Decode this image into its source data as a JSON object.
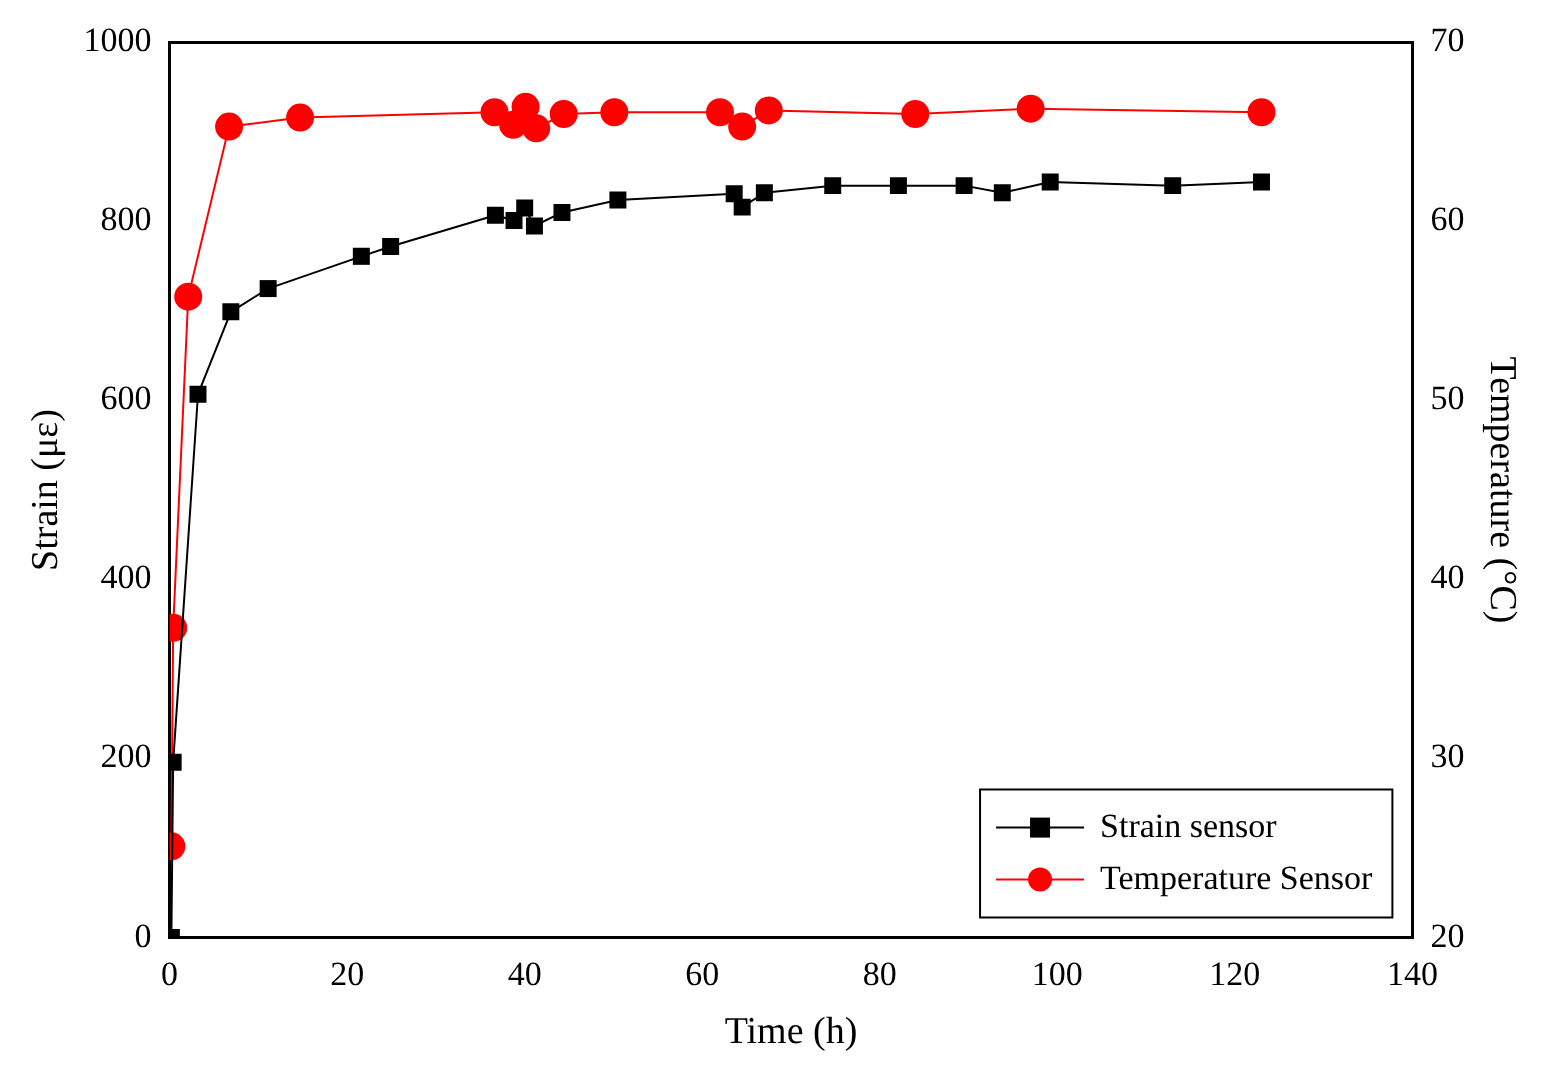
{
  "chart_data": {
    "type": "line",
    "xlabel": "Time (h)",
    "ylabel": "Strain (με)",
    "y2label": "Temperature (°C)",
    "xlim": [
      0,
      140
    ],
    "xticks": [
      0,
      20,
      40,
      60,
      80,
      100,
      120,
      140
    ],
    "ylim": [
      0,
      1000
    ],
    "yticks": [
      0,
      200,
      400,
      600,
      800,
      1000
    ],
    "y2lim": [
      20,
      70
    ],
    "y2ticks": [
      20,
      30,
      40,
      50,
      60,
      70
    ],
    "grid": false,
    "legend": "bottom right",
    "line_style": "solid",
    "series": [
      {
        "name": "Strain sensor",
        "color": "#000000",
        "marker": "square",
        "x": [
          0.2,
          0.4,
          3.2,
          6.9,
          11.1,
          21.6,
          24.9,
          36.7,
          38.8,
          40,
          41.1,
          44.2,
          50.5,
          63.6,
          64.5,
          67,
          74.7,
          82.1,
          89.5,
          93.8,
          99.2,
          113,
          123
        ],
        "values": [
          0,
          196,
          607,
          699,
          725,
          761,
          772,
          807,
          801,
          815,
          795,
          810,
          824,
          831,
          816,
          832,
          840,
          840,
          840,
          832,
          844,
          840,
          844
        ]
      },
      {
        "name": "Temperature Sensor",
        "color": "#ff0000",
        "marker": "circle",
        "axis": "y2",
        "x": [
          0.2,
          0.4,
          2.1,
          6.7,
          14.7,
          36.6,
          38.7,
          40.1,
          41.3,
          44.4,
          50.1,
          62,
          64.5,
          67.5,
          84,
          97,
          123
        ],
        "values": [
          25.1,
          37.3,
          55.8,
          65.3,
          65.8,
          66.1,
          65.4,
          66.4,
          65.2,
          66,
          66.1,
          66.1,
          65.3,
          66.2,
          66,
          66.3,
          66.1
        ]
      }
    ]
  }
}
